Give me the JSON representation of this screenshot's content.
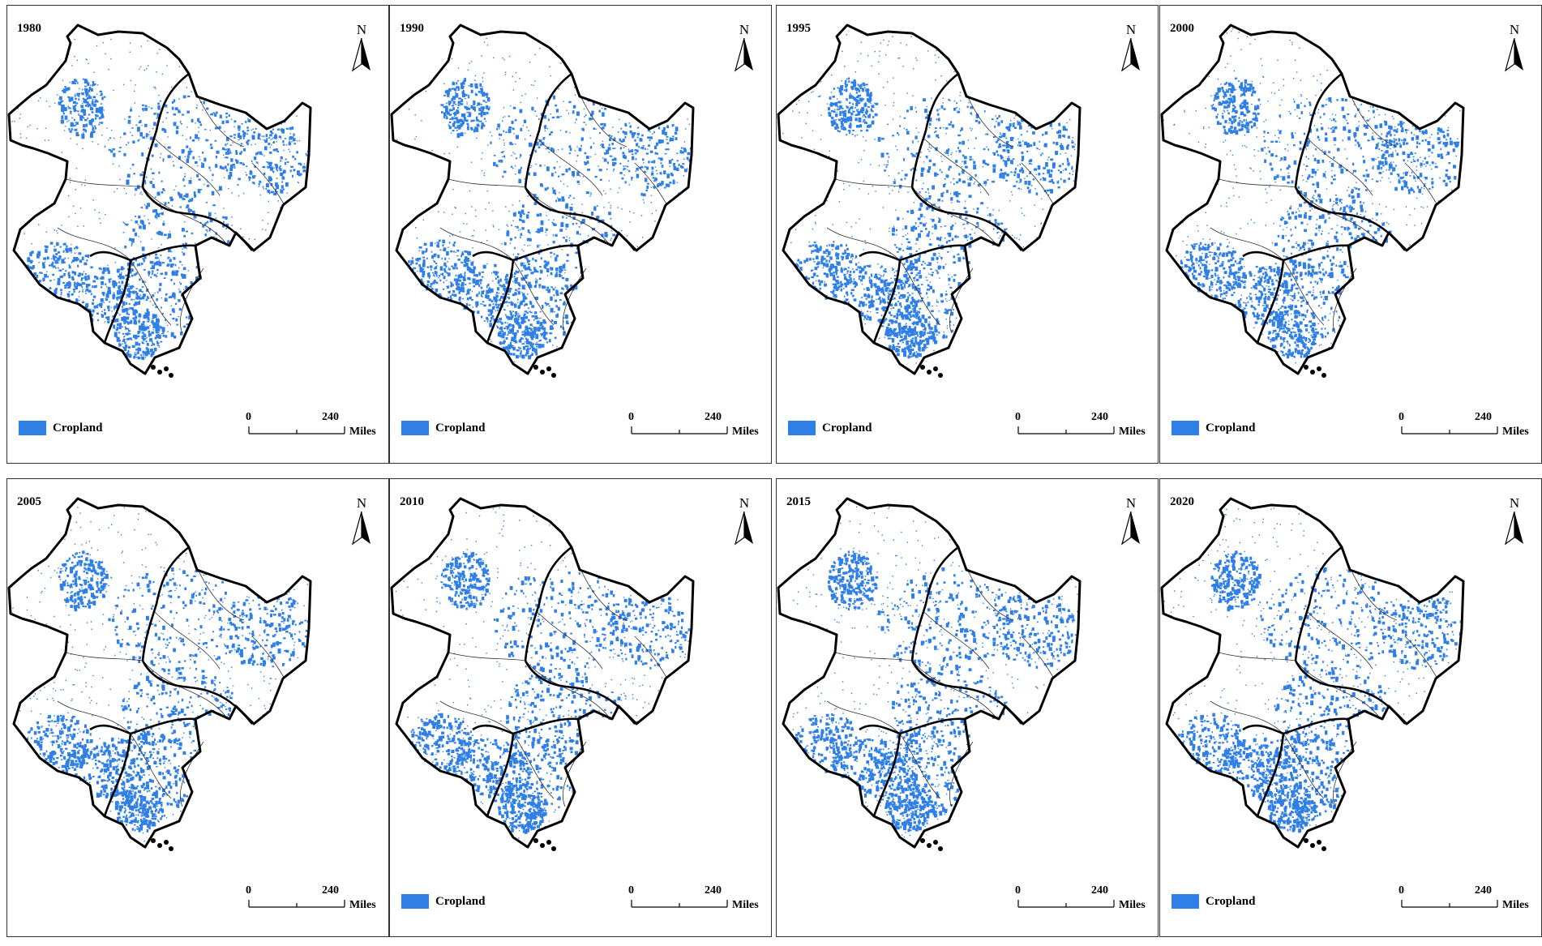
{
  "colors": {
    "cropland": "#2f7fe6",
    "boundary": "#000000",
    "inner_boundary": "#333333"
  },
  "panels": [
    {
      "year": "1980",
      "show_legend": true,
      "density": 0.55
    },
    {
      "year": "1990",
      "show_legend": true,
      "density": 0.57
    },
    {
      "year": "1995",
      "show_legend": true,
      "density": 0.6
    },
    {
      "year": "2000",
      "show_legend": true,
      "density": 0.62
    },
    {
      "year": "2005",
      "show_legend": false,
      "density": 0.63
    },
    {
      "year": "2010",
      "show_legend": true,
      "density": 0.65
    },
    {
      "year": "2015",
      "show_legend": false,
      "density": 0.67
    },
    {
      "year": "2020",
      "show_legend": true,
      "density": 0.68
    }
  ],
  "north_arrow": {
    "label": "N",
    "icon": "north-arrow-icon"
  },
  "legend": {
    "label": "Cropland"
  },
  "scale_bar": {
    "start": "0",
    "end": "240",
    "unit": "Miles"
  }
}
